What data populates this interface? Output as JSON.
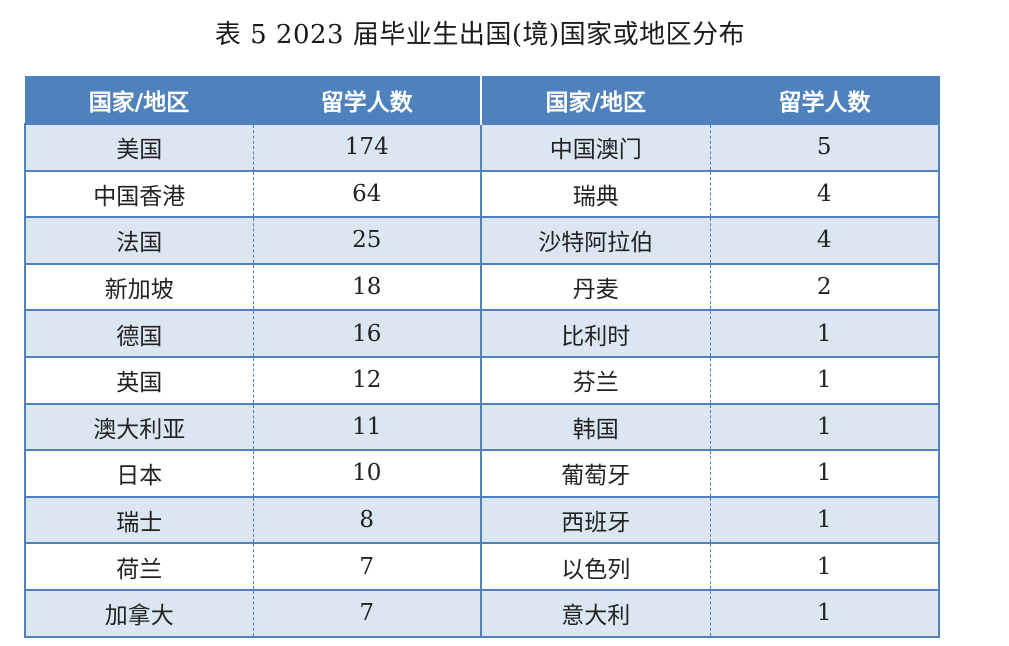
{
  "caption": "表 5   2023 届毕业生出国(境)国家或地区分布",
  "table": {
    "headers": [
      "国家/地区",
      "留学人数",
      "国家/地区",
      "留学人数"
    ],
    "rows": [
      [
        "美国",
        "174",
        "中国澳门",
        "5"
      ],
      [
        "中国香港",
        "64",
        "瑞典",
        "4"
      ],
      [
        "法国",
        "25",
        "沙特阿拉伯",
        "4"
      ],
      [
        "新加坡",
        "18",
        "丹麦",
        "2"
      ],
      [
        "德国",
        "16",
        "比利时",
        "1"
      ],
      [
        "英国",
        "12",
        "芬兰",
        "1"
      ],
      [
        "澳大利亚",
        "11",
        "韩国",
        "1"
      ],
      [
        "日本",
        "10",
        "葡萄牙",
        "1"
      ],
      [
        "瑞士",
        "8",
        "西班牙",
        "1"
      ],
      [
        "荷兰",
        "7",
        "以色列",
        "1"
      ],
      [
        "加拿大",
        "7",
        "意大利",
        "1"
      ]
    ]
  },
  "colors": {
    "header_bg": "#4f81bd",
    "header_text": "#ffffff",
    "stripe_bg": "#dce6f1",
    "border": "#4f81bd"
  }
}
